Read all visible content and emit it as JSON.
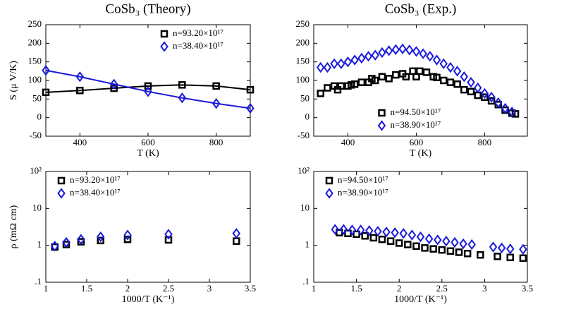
{
  "chart_data": [
    {
      "type": "line",
      "title": "CoSb₃ (Theory)",
      "xlabel": "T (K)",
      "ylabel": "S (μ V/K)",
      "xlim": [
        300,
        900
      ],
      "xticks": [
        400,
        600,
        800
      ],
      "ylim": [
        -50,
        250
      ],
      "yticks": [
        -50,
        0,
        50,
        100,
        150,
        200,
        250
      ],
      "legend": "upper right",
      "series": [
        {
          "name": "n=93.20×10¹⁷",
          "color": "#000000",
          "marker": "square",
          "x": [
            300,
            400,
            500,
            600,
            700,
            800,
            900
          ],
          "values": [
            68,
            73,
            79,
            85,
            88,
            85,
            75
          ]
        },
        {
          "name": "n=38.40×10¹⁷",
          "color": "#1a1adb",
          "marker": "diamond",
          "x": [
            300,
            400,
            500,
            600,
            700,
            800,
            900
          ],
          "values": [
            127,
            110,
            90,
            70,
            53,
            38,
            25
          ]
        }
      ]
    },
    {
      "type": "scatter",
      "title": "CoSb₃ (Exp.)",
      "xlabel": "T (K)",
      "xlim": [
        300,
        925
      ],
      "xticks": [
        400,
        600,
        800
      ],
      "ylim": [
        -50,
        250
      ],
      "yticks": [
        -50,
        0,
        50,
        100,
        150,
        200,
        250
      ],
      "legend": "lower center",
      "series": [
        {
          "name": "n=94.50×10¹⁷",
          "color": "#000000",
          "marker": "square",
          "x": [
            320,
            340,
            360,
            370,
            380,
            400,
            410,
            420,
            440,
            460,
            470,
            480,
            500,
            520,
            540,
            560,
            570,
            590,
            600,
            610,
            630,
            650,
            660,
            680,
            700,
            720,
            740,
            760,
            780,
            800,
            820,
            840,
            860,
            880,
            890
          ],
          "values": [
            65,
            80,
            85,
            75,
            85,
            85,
            88,
            90,
            95,
            95,
            105,
            100,
            110,
            105,
            115,
            118,
            110,
            125,
            110,
            125,
            122,
            110,
            108,
            100,
            95,
            90,
            75,
            70,
            60,
            55,
            45,
            35,
            20,
            12,
            10
          ]
        },
        {
          "name": "n=38.90×10¹⁷",
          "color": "#1a1adb",
          "marker": "diamond",
          "x": [
            320,
            340,
            360,
            380,
            400,
            420,
            440,
            460,
            480,
            500,
            520,
            540,
            560,
            580,
            600,
            620,
            640,
            660,
            680,
            700,
            720,
            740,
            760,
            780,
            800,
            820,
            840,
            860,
            880
          ],
          "values": [
            135,
            135,
            145,
            145,
            150,
            155,
            160,
            165,
            168,
            175,
            180,
            183,
            185,
            182,
            178,
            172,
            165,
            155,
            145,
            135,
            125,
            110,
            95,
            80,
            65,
            55,
            40,
            25,
            15
          ]
        }
      ]
    },
    {
      "type": "scatter",
      "xlabel": "1000/T (K⁻¹)",
      "ylabel": "ρ (mΩ cm)",
      "ylog": true,
      "xlim": [
        1,
        3.5
      ],
      "xticks": [
        1,
        1.5,
        2,
        2.5,
        3,
        3.5
      ],
      "ylim": [
        0.1,
        100
      ],
      "yticks": [
        {
          "value": 0.1,
          "label": ".1"
        },
        1,
        10,
        {
          "value": 100,
          "label": "10²"
        }
      ],
      "legend": "upper left",
      "series": [
        {
          "name": "n=93.20×10¹⁷",
          "color": "#000000",
          "marker": "square",
          "x": [
            1.11,
            1.25,
            1.43,
            1.67,
            2.0,
            2.5,
            3.33
          ],
          "values": [
            0.9,
            1.05,
            1.25,
            1.35,
            1.45,
            1.4,
            1.3
          ]
        },
        {
          "name": "n=38.40×10¹⁷",
          "color": "#1a1adb",
          "marker": "diamond",
          "x": [
            1.11,
            1.25,
            1.43,
            1.67,
            2.0,
            2.5,
            3.33
          ],
          "values": [
            0.95,
            1.2,
            1.45,
            1.7,
            1.9,
            2.0,
            2.1
          ]
        }
      ]
    },
    {
      "type": "scatter",
      "xlabel": "1000/T (K⁻¹)",
      "ylog": true,
      "xlim": [
        1,
        3.5
      ],
      "xticks": [
        1,
        1.5,
        2,
        2.5,
        3,
        3.5
      ],
      "ylim": [
        0.1,
        100
      ],
      "yticks": [
        {
          "value": 0.1,
          "label": ".1"
        },
        1,
        10,
        {
          "value": 100,
          "label": "10²"
        }
      ],
      "legend": "upper left",
      "series": [
        {
          "name": "n=94.50×10¹⁷",
          "color": "#000000",
          "marker": "square",
          "x": [
            1.3,
            1.4,
            1.5,
            1.6,
            1.7,
            1.8,
            1.9,
            2.0,
            2.1,
            2.2,
            2.3,
            2.4,
            2.5,
            2.6,
            2.7,
            2.8,
            2.95,
            3.15,
            3.3,
            3.45
          ],
          "values": [
            2.2,
            2.1,
            2.0,
            1.8,
            1.6,
            1.45,
            1.3,
            1.15,
            1.05,
            0.95,
            0.85,
            0.8,
            0.75,
            0.7,
            0.65,
            0.6,
            0.55,
            0.5,
            0.47,
            0.45
          ]
        },
        {
          "name": "n=38.90×10¹⁷",
          "color": "#1a1adb",
          "marker": "diamond",
          "x": [
            1.25,
            1.35,
            1.45,
            1.55,
            1.65,
            1.75,
            1.85,
            1.95,
            2.05,
            2.15,
            2.25,
            2.35,
            2.45,
            2.55,
            2.65,
            2.75,
            2.85,
            3.1,
            3.2,
            3.3,
            3.45
          ],
          "values": [
            2.7,
            2.7,
            2.6,
            2.6,
            2.5,
            2.4,
            2.3,
            2.2,
            2.1,
            1.9,
            1.7,
            1.5,
            1.4,
            1.3,
            1.2,
            1.1,
            1.05,
            0.9,
            0.85,
            0.8,
            0.78
          ]
        }
      ]
    }
  ]
}
